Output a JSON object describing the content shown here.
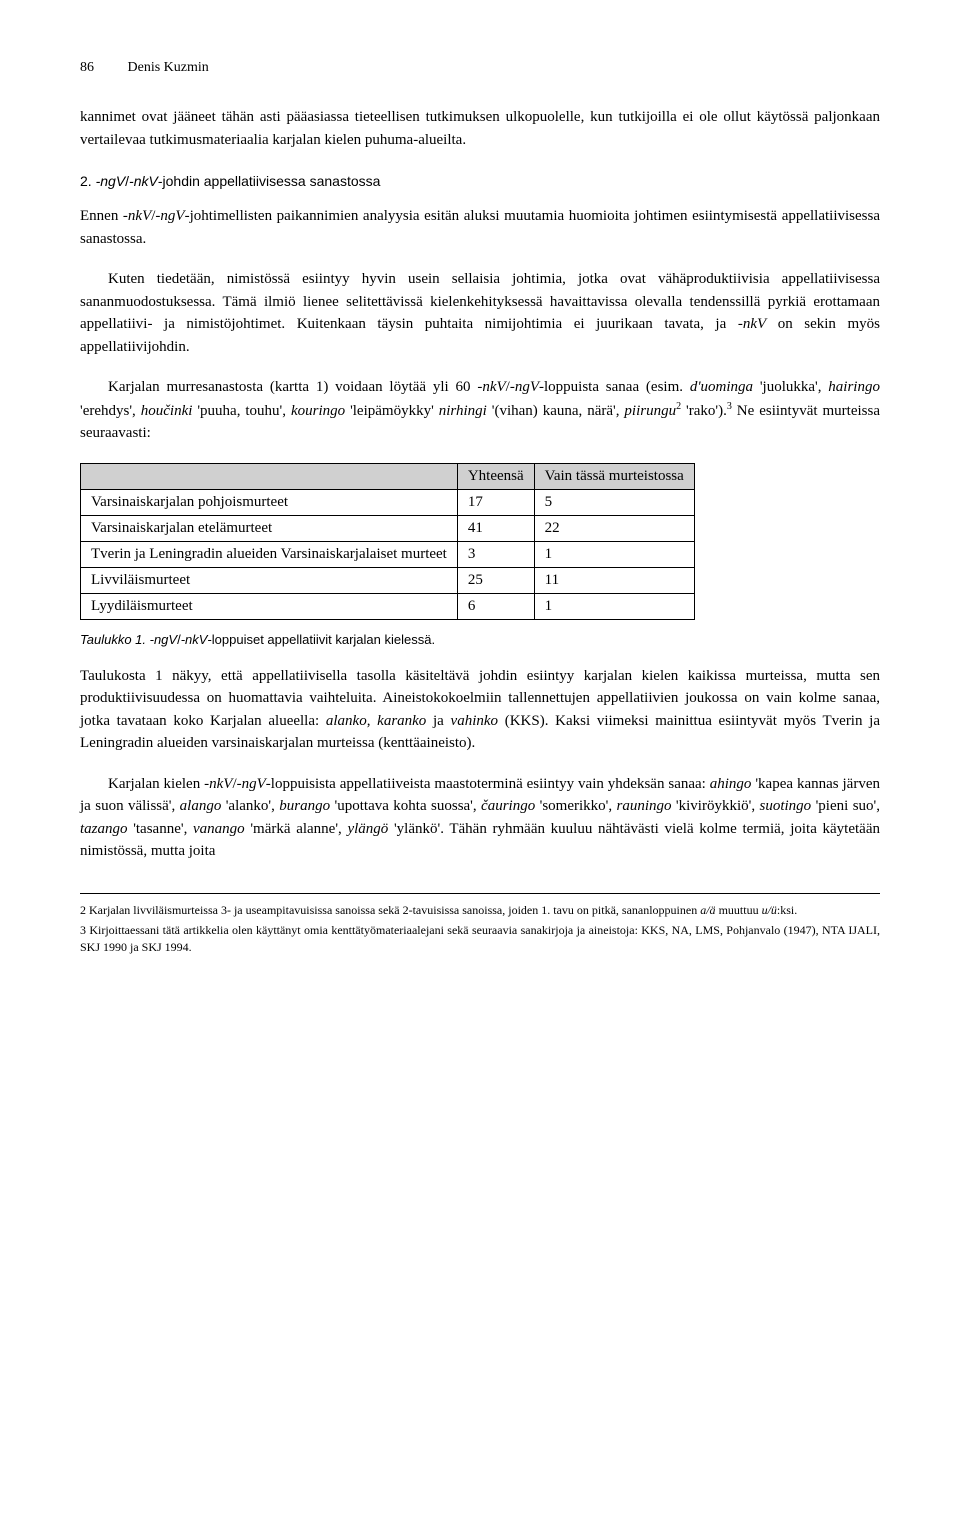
{
  "header": {
    "page_number": "86",
    "author": "Denis Kuzmin"
  },
  "para1": "kannimet ovat jääneet tähän asti pääasiassa tieteellisen tutkimuksen ulkopuolelle, kun tutkijoilla ei ole ollut käytössä paljonkaan vertailevaa tutkimusmateriaalia karjalan kielen puhuma-alueilta.",
  "section": {
    "number": "2.",
    "title_a": "-ngV",
    "title_b": "/",
    "title_c": "-nkV",
    "title_d": "-johdin appellatiivisessa sanastossa"
  },
  "para2a": "Ennen ",
  "para2b": "-nkV",
  "para2c": "/",
  "para2d": "-ngV",
  "para2e": "-johtimellisten paikannimien analyysia esitän aluksi muutamia huomioita johtimen esiintymisestä appellatiivisessa sanastossa.",
  "para3": "Kuten tiedetään, nimistössä esiintyy hyvin usein sellaisia johtimia, jotka ovat vähäproduktiivisia appellatiivisessa sananmuodostuksessa. Tämä ilmiö lienee selitettävissä kielenkehityksessä havaittavissa olevalla tendenssillä pyrkiä erottamaan appellatiivi- ja nimistöjohtimet. Kuitenkaan täysin puhtaita nimijohtimia ei juurikaan tavata, ja ",
  "para3b": "-nkV",
  "para3c": " on sekin myös appellatiivijohdin.",
  "para4a": "Karjalan murresanastosta (kartta 1) voidaan löytää yli 60 ",
  "para4b": "-nkV",
  "para4c": "/",
  "para4d": "-ngV",
  "para4e": "-loppuista sanaa (esim. ",
  "para4f": "d'uominga",
  "para4g": " 'juolukka', ",
  "para4h": "hairingo",
  "para4i": " 'erehdys', ",
  "para4j": "houčinki",
  "para4k": " 'puuha, touhu', ",
  "para4l": "kou­ringo",
  "para4m": " 'leipämöykky' ",
  "para4n": "nirhingi",
  "para4o": " '(vihan) kauna, närä', ",
  "para4p": "piirungu",
  "para4sup2": "2",
  "para4q": " 'rako').",
  "para4sup3": "3",
  "para4r": " Ne esiintyvät murteissa seuraavasti:",
  "table": {
    "headers": [
      "",
      "Yhteensä",
      "Vain tässä murteistossa"
    ],
    "rows": [
      [
        "Varsinaiskarjalan pohjoismurteet",
        "17",
        "5"
      ],
      [
        "Varsinaiskarjalan etelämurteet",
        "41",
        "22"
      ],
      [
        "Tverin ja Leningradin alueiden Varsinaiskarjalaiset murteet",
        "3",
        "1"
      ],
      [
        "Livviläismurteet",
        "25",
        "11"
      ],
      [
        "Lyydiläismurteet",
        "6",
        "1"
      ]
    ]
  },
  "table_caption_a": "Taulukko 1.",
  "table_caption_b": " -ngV",
  "table_caption_c": "/",
  "table_caption_d": "-nkV",
  "table_caption_e": "-loppuiset appellatiivit karjalan kielessä.",
  "para5a": "Taulukosta 1 näkyy, että appellatiivisella tasolla käsiteltävä johdin esiintyy karjalan kielen kaikissa murteissa, mutta sen produktiivisuudessa on huomattavia vaihteluita. Aineistokokoelmiin tallennettujen appellatiivien joukossa on vain kolme sanaa, jotka tavataan koko Karjalan alueella: ",
  "para5b": "alanko",
  "para5c": ", ",
  "para5d": "karanko",
  "para5e": " ja ",
  "para5f": "vahinko",
  "para5g": " (KKS). Kaksi viimeksi mainittua esiintyvät myös Tverin ja Leningradin alueiden varsinaiskarjalan murteissa (kenttäaineisto).",
  "para6a": "Karjalan kielen ",
  "para6b": "-nkV",
  "para6c": "/",
  "para6d": "-ngV",
  "para6e": "-loppuisista appellatiiveista maastoterminä esiintyy vain yhdeksän sanaa: ",
  "para6f": "ahingo",
  "para6g": " 'kapea kannas järven ja suon välissä', ",
  "para6h": "alango",
  "para6i": " 'alanko', ",
  "para6j": "burango",
  "para6k": " 'upottava kohta suossa', ",
  "para6l": "čauringo",
  "para6m": " 'somerikko', ",
  "para6n": "rauningo",
  "para6o": " 'kiviröykkiö', ",
  "para6p": "suo­tingo",
  "para6q": " 'pieni suo', ",
  "para6r": "tazango",
  "para6s": " 'tasanne', ",
  "para6t": "vanango",
  "para6u": " 'märkä alanne', ",
  "para6v": "ylängö",
  "para6w": " 'ylänkö'. Tähän ryhmään kuuluu nähtävästi vielä kolme termiä, joita käytetään nimistössä, mutta joita",
  "footnote2a": "2   Karjalan livviläismurteissa 3- ja useampitavuisissa sanoissa sekä 2-tavuisissa sanoissa, joiden 1. tavu on pitkä, sananloppuinen ",
  "footnote2b": "a/ä",
  "footnote2c": " muuttuu ",
  "footnote2d": "u/ü",
  "footnote2e": ":ksi.",
  "footnote3": "3   Kirjoittaessani tätä artikkelia olen käyttänyt omia kenttätyömateriaalejani sekä seuraavia sanakirjoja ja aineistoja: KKS, NA, LMS, Pohjanvalo (1947), NTA IJALI, SKJ 1990 ja SKJ 1994."
}
